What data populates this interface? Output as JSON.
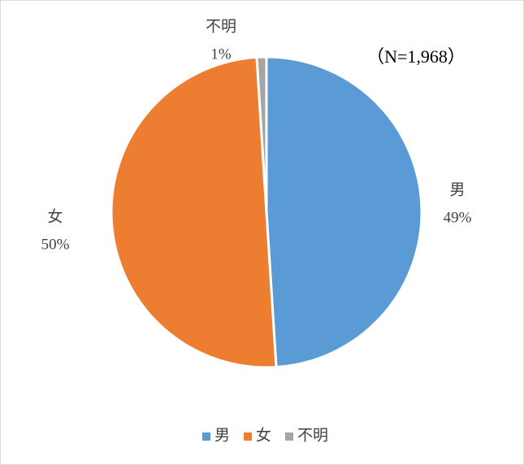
{
  "chart_data": {
    "type": "pie",
    "annotation": "（N=1,968）",
    "categories": [
      "男",
      "女",
      "不明"
    ],
    "values": [
      49,
      50,
      1
    ],
    "value_labels": [
      "49%",
      "50%",
      "1%"
    ],
    "colors": [
      "#5b9bd5",
      "#ed7d31",
      "#a5a5a5"
    ],
    "legend": "bottom"
  }
}
